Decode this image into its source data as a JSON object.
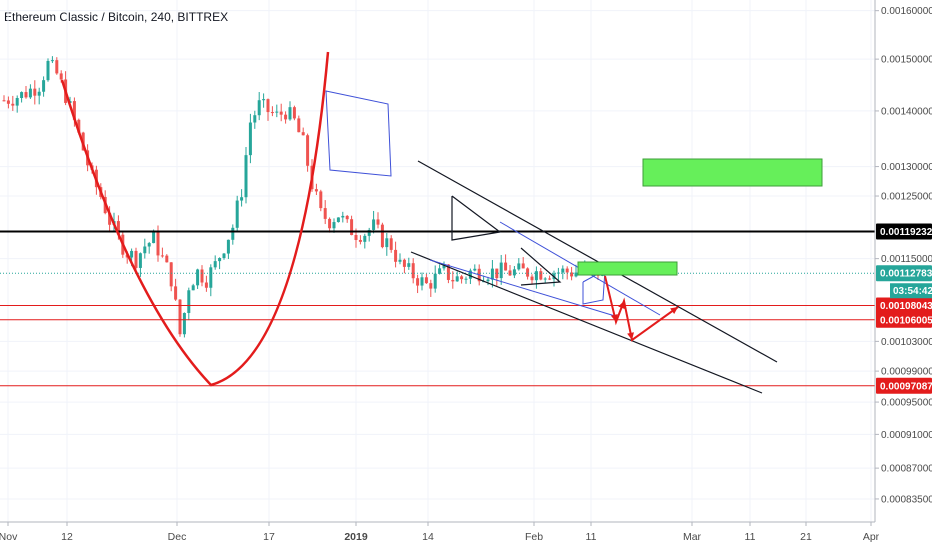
{
  "header": {
    "title": "Ethereum Classic / Bitcoin, 240, BITTREX"
  },
  "colors": {
    "up": "#26a69a",
    "down": "#ef5350",
    "curve": "#e31c1c",
    "support": "#e31c1c",
    "resistance": "#000000",
    "last": "#26a69a",
    "box": "#66ef5a",
    "channel": "#131722",
    "blue": "#3f51d8"
  },
  "chart_data": {
    "type": "candlestick",
    "title": "Ethereum Classic / Bitcoin, 240, BITTREX",
    "y_scale": "log",
    "ylim": [
      0.000825,
      0.00161
    ],
    "x_ticks": [
      "Nov",
      "12",
      "Dec",
      "17",
      "2019",
      "14",
      "Feb",
      "11",
      "Mar",
      "11",
      "21",
      "Apr"
    ],
    "y_ticks": [
      "0.00160000",
      "0.00150000",
      "0.00140000",
      "0.00130000",
      "0.00125000",
      "0.00115000",
      "0.00103000",
      "0.00099000",
      "0.00095000",
      "0.00091000",
      "0.00087000",
      "0.00083500"
    ],
    "tagged_levels": [
      {
        "value": "0.00119232",
        "role": "resistance"
      },
      {
        "value": "0.00112783",
        "role": "last"
      },
      {
        "value": "0.00108043",
        "role": "support"
      },
      {
        "value": "0.00106005",
        "role": "support"
      },
      {
        "value": "0.00097087",
        "role": "support"
      }
    ],
    "countdown": "03:54:42",
    "price_path": [
      [
        0,
        0.00142
      ],
      [
        2,
        0.00143
      ],
      [
        4,
        0.00145
      ],
      [
        5,
        0.00149
      ],
      [
        6,
        0.00147
      ],
      [
        7,
        0.00143
      ],
      [
        8,
        0.00138
      ],
      [
        9,
        0.00133
      ],
      [
        10,
        0.00128
      ],
      [
        11,
        0.00125
      ],
      [
        12,
        0.00121
      ],
      [
        13,
        0.00118
      ],
      [
        14,
        0.00116
      ],
      [
        15,
        0.00115
      ],
      [
        16,
        0.00117
      ],
      [
        17,
        0.00118
      ],
      [
        18,
        0.00115
      ],
      [
        19,
        0.00112
      ],
      [
        19.5,
        0.00108
      ],
      [
        20,
        0.00104
      ],
      [
        20.5,
        0.00107
      ],
      [
        21,
        0.00111
      ],
      [
        22,
        0.00113
      ],
      [
        23,
        0.00112
      ],
      [
        24,
        0.00114
      ],
      [
        25,
        0.00117
      ],
      [
        26,
        0.0012
      ],
      [
        27,
        0.00126
      ],
      [
        28,
        0.00138
      ],
      [
        29,
        0.00141
      ],
      [
        30,
        0.0014
      ],
      [
        31,
        0.00139
      ],
      [
        32,
        0.0014
      ],
      [
        33,
        0.00138
      ],
      [
        34,
        0.00134
      ],
      [
        35,
        0.00127
      ],
      [
        36,
        0.00122
      ],
      [
        37,
        0.00121
      ],
      [
        38,
        0.00122
      ],
      [
        39,
        0.0012
      ],
      [
        40,
        0.00119
      ],
      [
        41,
        0.00119
      ],
      [
        42,
        0.0012
      ],
      [
        43,
        0.00118
      ],
      [
        44,
        0.00117
      ],
      [
        45,
        0.00114
      ],
      [
        46,
        0.00113
      ],
      [
        47,
        0.00112
      ],
      [
        48,
        0.00111
      ],
      [
        49,
        0.00112
      ],
      [
        50,
        0.00113
      ],
      [
        51,
        0.00112
      ],
      [
        52,
        0.00112
      ],
      [
        53,
        0.00113
      ]
    ]
  }
}
